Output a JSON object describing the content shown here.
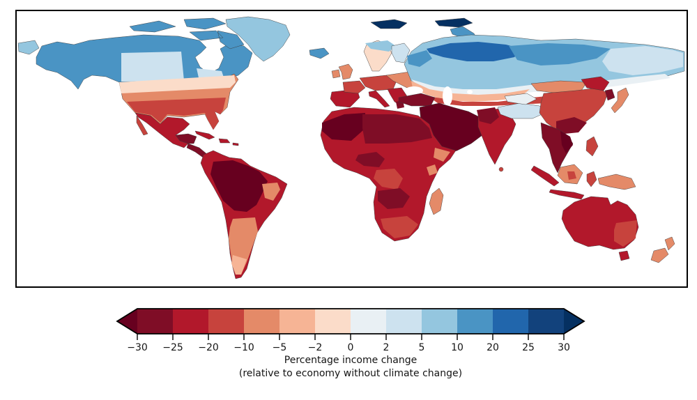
{
  "figure": {
    "background": "#ffffff",
    "frame_color": "#000000"
  },
  "chart_data": {
    "type": "choropleth_map",
    "projection": "equirectangular-world",
    "title": "",
    "colorbar": {
      "orientation": "horizontal",
      "extend": "both",
      "label_line1": "Percentage income change",
      "label_line2": "(relative to economy without climate change)",
      "ticks": [
        "−30",
        "−25",
        "−20",
        "−10",
        "−5",
        "−2",
        "0",
        "2",
        "5",
        "10",
        "20",
        "25",
        "30"
      ],
      "boundaries": [
        -30,
        -25,
        -20,
        -10,
        -5,
        -2,
        0,
        2,
        5,
        10,
        20,
        25,
        30
      ],
      "bands": [
        {
          "id": "under",
          "range": "< -30",
          "color": "#67001f"
        },
        {
          "id": "b1",
          "range": "-30 to -25",
          "color": "#7f0d26"
        },
        {
          "id": "b2",
          "range": "-25 to -20",
          "color": "#b2182b"
        },
        {
          "id": "b3",
          "range": "-20 to -10",
          "color": "#c7433d"
        },
        {
          "id": "b4",
          "range": "-10 to -5",
          "color": "#e48a68"
        },
        {
          "id": "b5",
          "range": "-5 to -2",
          "color": "#f6b495"
        },
        {
          "id": "b6",
          "range": "-2 to 0",
          "color": "#fbdcc9"
        },
        {
          "id": "b7",
          "range": "0 to 2",
          "color": "#e9f0f4"
        },
        {
          "id": "b8",
          "range": "2 to 5",
          "color": "#cde2ef"
        },
        {
          "id": "b9",
          "range": "5 to 10",
          "color": "#94c6df"
        },
        {
          "id": "b10",
          "range": "10 to 20",
          "color": "#4a94c4"
        },
        {
          "id": "b11",
          "range": "20 to 25",
          "color": "#2166ac"
        },
        {
          "id": "b12",
          "range": "25 to 30",
          "color": "#12427c"
        },
        {
          "id": "over",
          "range": "> 30",
          "color": "#053061"
        }
      ],
      "outline_color": "#000000",
      "tick_color": "#000000",
      "tick_label_fontsize": 14
    },
    "regions": [
      {
        "id": "canada-alaska",
        "label": "Canada & Alaska",
        "band": "b10"
      },
      {
        "id": "canadian-arctic",
        "label": "Canadian Arctic Islands",
        "band": "b10"
      },
      {
        "id": "west-canada-patch",
        "label": "Western Canada prairies",
        "band": "b8"
      },
      {
        "id": "ontario-patch",
        "label": "Central Canada (Ontario)",
        "band": "b8"
      },
      {
        "id": "chukotka-west",
        "label": "Chukotka (west edge)",
        "band": "b9"
      },
      {
        "id": "greenland",
        "label": "Greenland",
        "band": "b9"
      },
      {
        "id": "iceland",
        "label": "Iceland",
        "band": "b10"
      },
      {
        "id": "svalbard",
        "label": "Svalbard",
        "band": "over"
      },
      {
        "id": "franz-josef",
        "label": "Franz Josef Land",
        "band": "over"
      },
      {
        "id": "novaya-zemlya",
        "label": "Novaya Zemlya",
        "band": "b10"
      },
      {
        "id": "northern-us",
        "label": "Northern United States",
        "band": "b6"
      },
      {
        "id": "central-us",
        "label": "Central United States",
        "band": "b4"
      },
      {
        "id": "southern-us",
        "label": "Southern United States",
        "band": "b3"
      },
      {
        "id": "mexico",
        "label": "Mexico",
        "band": "b2"
      },
      {
        "id": "baja",
        "label": "Baja California",
        "band": "b3"
      },
      {
        "id": "southern-mexico",
        "label": "Southern Mexico & Yucatán",
        "band": "b1"
      },
      {
        "id": "central-america",
        "label": "Central America",
        "band": "b1"
      },
      {
        "id": "caribbean",
        "label": "Caribbean islands",
        "band": "b2"
      },
      {
        "id": "south-america-base",
        "label": "Tropical South America",
        "band": "b2"
      },
      {
        "id": "amazon-brazil",
        "label": "Amazon / central Brazil",
        "band": "under"
      },
      {
        "id": "east-brazil-coast",
        "label": "Eastern Brazil coast",
        "band": "b4"
      },
      {
        "id": "southern-cone",
        "label": "Argentina / southern cone",
        "band": "b4"
      },
      {
        "id": "patagonia",
        "label": "Patagonia",
        "band": "b5"
      },
      {
        "id": "uk-ireland",
        "label": "United Kingdom & Ireland",
        "band": "b4"
      },
      {
        "id": "iberia",
        "label": "Iberian Peninsula",
        "band": "b2"
      },
      {
        "id": "france",
        "label": "France",
        "band": "b3"
      },
      {
        "id": "central-europe",
        "label": "Central Europe",
        "band": "b3"
      },
      {
        "id": "italy",
        "label": "Italy",
        "band": "b2"
      },
      {
        "id": "balkans",
        "label": "Balkans",
        "band": "b2"
      },
      {
        "id": "greece",
        "label": "Greece",
        "band": "b1"
      },
      {
        "id": "eastern-europe",
        "label": "Eastern Europe",
        "band": "b4"
      },
      {
        "id": "scandinavia-south",
        "label": "Southern Scandinavia",
        "band": "b6"
      },
      {
        "id": "scandinavia-north",
        "label": "Northern Scandinavia",
        "band": "b9"
      },
      {
        "id": "finland",
        "label": "Finland",
        "band": "b8"
      },
      {
        "id": "turkey",
        "label": "Turkey",
        "band": "b1"
      },
      {
        "id": "north-eurasia-base",
        "label": "Northern Eurasia",
        "band": "b9"
      },
      {
        "id": "central-siberia",
        "label": "North-central Siberia",
        "band": "b11"
      },
      {
        "id": "west-siberia",
        "label": "Western / mid Siberia",
        "band": "b10"
      },
      {
        "id": "east-siberia",
        "label": "Eastern Siberia",
        "band": "b8"
      },
      {
        "id": "south-russia-pale",
        "label": "Southern Russia (transition)",
        "band": "b7"
      },
      {
        "id": "kazakhstan-steppe",
        "label": "Kazakh steppe",
        "band": "b5"
      },
      {
        "id": "south-russia-red",
        "label": "Southern steppe belt",
        "band": "b3"
      },
      {
        "id": "middle-east",
        "label": "Middle East / Arabia",
        "band": "under"
      },
      {
        "id": "africa-base",
        "label": "Sub-Saharan Africa",
        "band": "b2"
      },
      {
        "id": "west-sahara-maghreb",
        "label": "Maghreb & western Sahara",
        "band": "under"
      },
      {
        "id": "sahara",
        "label": "Central & eastern Sahara",
        "band": "b1"
      },
      {
        "id": "nigeria-patch",
        "label": "Nigeria / Gulf of Guinea",
        "band": "b1"
      },
      {
        "id": "congo",
        "label": "Congo basin",
        "band": "b3"
      },
      {
        "id": "horn-of-africa",
        "label": "Horn of Africa",
        "band": "b4"
      },
      {
        "id": "angola-zambia",
        "label": "Angola / Zambia",
        "band": "b1"
      },
      {
        "id": "south-africa",
        "label": "South Africa",
        "band": "b3"
      },
      {
        "id": "madagascar",
        "label": "Madagascar",
        "band": "b4"
      },
      {
        "id": "india",
        "label": "India",
        "band": "b2"
      },
      {
        "id": "pakistan-nw-india",
        "label": "Pakistan / NW India",
        "band": "b1"
      },
      {
        "id": "sri-lanka",
        "label": "Sri Lanka",
        "band": "b3"
      },
      {
        "id": "tibet",
        "label": "Tibetan Plateau",
        "band": "b8"
      },
      {
        "id": "tarim-basin",
        "label": "Tarim basin",
        "band": "b7"
      },
      {
        "id": "mongolia",
        "label": "Mongolia",
        "band": "b4"
      },
      {
        "id": "china",
        "label": "China",
        "band": "b3"
      },
      {
        "id": "south-china",
        "label": "Southern China",
        "band": "b1"
      },
      {
        "id": "northeast-china",
        "label": "Northeast China",
        "band": "b2"
      },
      {
        "id": "korea",
        "label": "Korean Peninsula",
        "band": "b1"
      },
      {
        "id": "japan",
        "label": "Japan",
        "band": "b4"
      },
      {
        "id": "se-asia-mainland",
        "label": "Mainland Southeast Asia",
        "band": "b1"
      },
      {
        "id": "vietnam",
        "label": "Vietnam / Indochina east",
        "band": "under"
      },
      {
        "id": "malay-sumatra",
        "label": "Malay Peninsula & Sumatra",
        "band": "b2"
      },
      {
        "id": "borneo",
        "label": "Borneo",
        "band": "b4"
      },
      {
        "id": "borneo-center",
        "label": "Central Borneo",
        "band": "b3"
      },
      {
        "id": "java",
        "label": "Java",
        "band": "b2"
      },
      {
        "id": "sulawesi",
        "label": "Sulawesi",
        "band": "b3"
      },
      {
        "id": "philippines",
        "label": "Philippines",
        "band": "b3"
      },
      {
        "id": "new-guinea",
        "label": "New Guinea",
        "band": "b4"
      },
      {
        "id": "australia",
        "label": "Australia",
        "band": "b2"
      },
      {
        "id": "new-south-wales",
        "label": "New South Wales",
        "band": "b3"
      },
      {
        "id": "tasmania",
        "label": "Tasmania",
        "band": "b2"
      },
      {
        "id": "new-zealand",
        "label": "New Zealand",
        "band": "b4"
      }
    ]
  }
}
